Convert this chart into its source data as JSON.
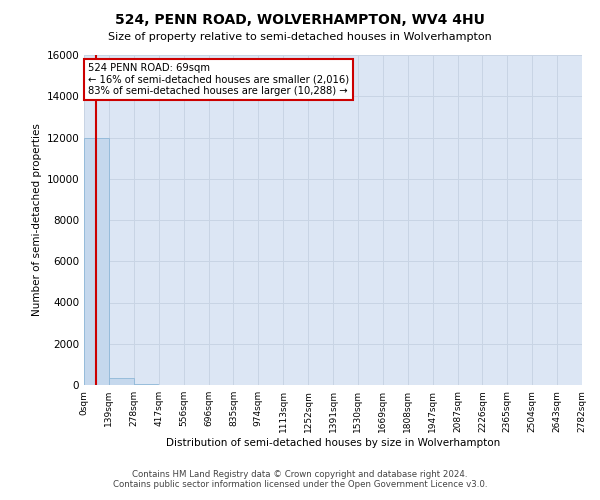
{
  "title": "524, PENN ROAD, WOLVERHAMPTON, WV4 4HU",
  "subtitle": "Size of property relative to semi-detached houses in Wolverhampton",
  "xlabel": "Distribution of semi-detached houses by size in Wolverhampton",
  "ylabel": "Number of semi-detached properties",
  "property_size": 69,
  "annotation_text_line1": "524 PENN ROAD: 69sqm",
  "annotation_text_line2": "← 16% of semi-detached houses are smaller (2,016)",
  "annotation_text_line3": "83% of semi-detached houses are larger (10,288) →",
  "bar_color": "#c5d8ed",
  "bar_edge_color": "#8fb8d8",
  "vline_color": "#cc0000",
  "annotation_box_color": "#ffffff",
  "annotation_box_edge": "#cc0000",
  "grid_color": "#c8d4e4",
  "background_color": "#dce6f4",
  "footer_line1": "Contains HM Land Registry data © Crown copyright and database right 2024.",
  "footer_line2": "Contains public sector information licensed under the Open Government Licence v3.0.",
  "bin_edges": [
    0,
    139,
    278,
    417,
    556,
    696,
    835,
    974,
    1113,
    1252,
    1391,
    1530,
    1669,
    1808,
    1947,
    2087,
    2226,
    2365,
    2504,
    2643,
    2782
  ],
  "bin_labels": [
    "0sqm",
    "139sqm",
    "278sqm",
    "417sqm",
    "556sqm",
    "696sqm",
    "835sqm",
    "974sqm",
    "1113sqm",
    "1252sqm",
    "1391sqm",
    "1530sqm",
    "1669sqm",
    "1808sqm",
    "1947sqm",
    "2087sqm",
    "2226sqm",
    "2365sqm",
    "2504sqm",
    "2643sqm",
    "2782sqm"
  ],
  "bin_counts": [
    12000,
    350,
    60,
    20,
    10,
    5,
    3,
    2,
    1,
    1,
    1,
    0,
    0,
    0,
    0,
    0,
    0,
    0,
    0,
    0
  ],
  "ylim": [
    0,
    16000
  ],
  "yticks": [
    0,
    2000,
    4000,
    6000,
    8000,
    10000,
    12000,
    14000,
    16000
  ]
}
